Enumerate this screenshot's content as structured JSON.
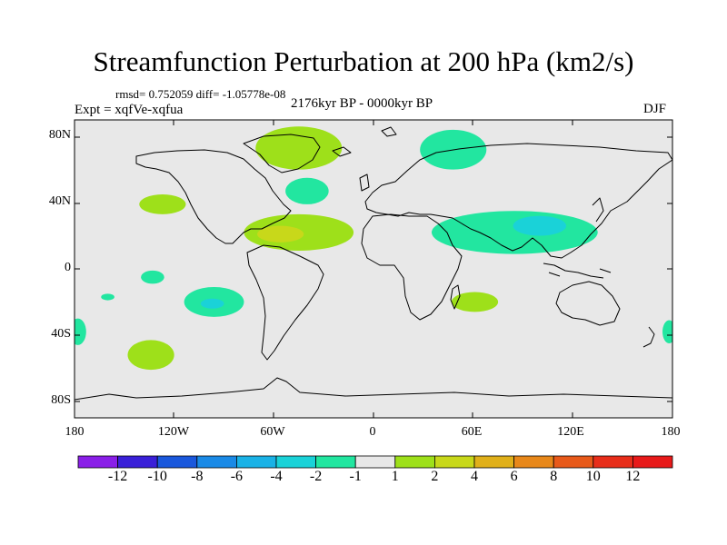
{
  "title": "Streamfunction Perturbation at 200 hPa (km2/s)",
  "stats": "rmsd= 0.752059 diff= -1.05778e-08",
  "period": "2176kyr BP - 0000kyr BP",
  "experiment": "Expt = xqfVe-xqfua",
  "season": "DJF",
  "axes": {
    "lat_ticks": [
      "80N",
      "40N",
      "0",
      "40S",
      "80S"
    ],
    "lon_ticks": [
      "180",
      "120W",
      "60W",
      "0",
      "60E",
      "120E",
      "180"
    ]
  },
  "colorbar": {
    "labels": [
      "-12",
      "-10",
      "-8",
      "-6",
      "-4",
      "-2",
      "-1",
      "1",
      "2",
      "4",
      "6",
      "8",
      "10",
      "12"
    ],
    "colors": [
      "#8a1fe8",
      "#3a20d8",
      "#1a58dc",
      "#1a8ae6",
      "#1ab2e6",
      "#1ad2d8",
      "#22e6a0",
      "#e8e8e8",
      "#9ee01a",
      "#c8d81a",
      "#e0b01a",
      "#e8881a",
      "#e85a1a",
      "#e82e1a",
      "#e81a1a"
    ]
  },
  "map": {
    "background": "#e8e8e8",
    "regions": [
      {
        "name": "greenland",
        "level": 2,
        "color": "#9ee01a",
        "lon": -45,
        "lat": 73,
        "rlon": 26,
        "rlat": 13
      },
      {
        "name": "scandinavia-russia",
        "level": -1,
        "color": "#22e6a0",
        "lon": 48,
        "lat": 72,
        "rlon": 20,
        "rlat": 12
      },
      {
        "name": "north-atlantic",
        "level": -1,
        "color": "#22e6a0",
        "lon": -40,
        "lat": 47,
        "rlon": 13,
        "rlat": 8
      },
      {
        "name": "north-pacific",
        "level": 2,
        "color": "#9ee01a",
        "lon": -127,
        "lat": 39,
        "rlon": 14,
        "rlat": 6
      },
      {
        "name": "tropical-atlantic",
        "level": 2,
        "color": "#9ee01a",
        "lon": -45,
        "lat": 22,
        "rlon": 33,
        "rlat": 11
      },
      {
        "name": "caribbean-core",
        "level": 4,
        "color": "#c8d81a",
        "lon": -56,
        "lat": 21,
        "rlon": 14,
        "rlat": 5
      },
      {
        "name": "asia",
        "level": -1,
        "color": "#22e6a0",
        "lon": 85,
        "lat": 22,
        "rlon": 50,
        "rlat": 13
      },
      {
        "name": "asia-core",
        "level": -2,
        "color": "#1ad2d8",
        "lon": 100,
        "lat": 26,
        "rlon": 16,
        "rlat": 6
      },
      {
        "name": "east-pacific-small",
        "level": -1,
        "color": "#22e6a0",
        "lon": -133,
        "lat": -5,
        "rlon": 7,
        "rlat": 4
      },
      {
        "name": "south-pacific-subtropical",
        "level": -1,
        "color": "#22e6a0",
        "lon": -96,
        "lat": -20,
        "rlon": 18,
        "rlat": 9
      },
      {
        "name": "south-pacific-core",
        "level": -2,
        "color": "#1ad2d8",
        "lon": -97,
        "lat": -21,
        "rlon": 7,
        "rlat": 3
      },
      {
        "name": "south-pacific-west",
        "level": -1,
        "color": "#22e6a0",
        "lon": -160,
        "lat": -17,
        "rlon": 4,
        "rlat": 2
      },
      {
        "name": "south-indian",
        "level": 2,
        "color": "#9ee01a",
        "lon": 61,
        "lat": -20,
        "rlon": 14,
        "rlat": 6
      },
      {
        "name": "south-pacific-midlat",
        "level": 2,
        "color": "#9ee01a",
        "lon": -134,
        "lat": -52,
        "rlon": 14,
        "rlat": 9
      },
      {
        "name": "west-edge",
        "level": -1,
        "color": "#22e6a0",
        "lon": -178,
        "lat": -38,
        "rlon": 5,
        "rlat": 8
      },
      {
        "name": "east-edge",
        "level": -1,
        "color": "#22e6a0",
        "lon": 178,
        "lat": -38,
        "rlon": 4,
        "rlat": 7
      }
    ]
  }
}
